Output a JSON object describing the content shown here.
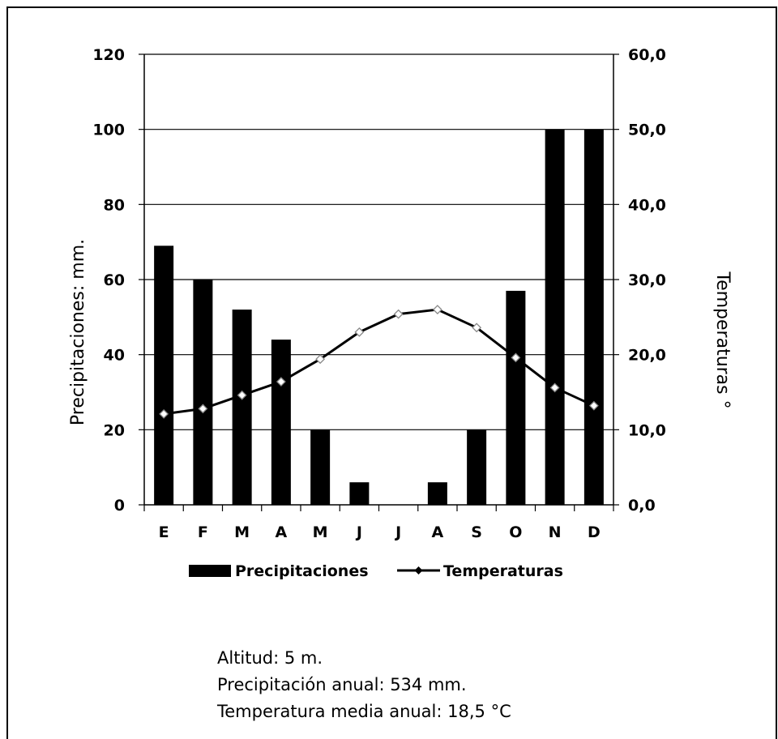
{
  "chart_data": {
    "type": "bar",
    "categories": [
      "E",
      "F",
      "M",
      "A",
      "M",
      "J",
      "J",
      "A",
      "S",
      "O",
      "N",
      "D"
    ],
    "series": [
      {
        "name": "Precipitaciones",
        "type": "bar",
        "axis": "left",
        "values": [
          69,
          60,
          52,
          44,
          20,
          6,
          0,
          6,
          20,
          57,
          100,
          100
        ]
      },
      {
        "name": "Temperaturas",
        "type": "line",
        "axis": "right",
        "values": [
          12.1,
          12.8,
          14.6,
          16.4,
          19.4,
          23.0,
          25.4,
          26.0,
          23.6,
          19.6,
          15.6,
          13.2
        ]
      }
    ],
    "ylabel": "Precipitaciones: mm.",
    "y2label": "Temperaturas °",
    "ylim": [
      0,
      120
    ],
    "y2lim": [
      0,
      60
    ],
    "yticks": [
      "0",
      "20",
      "40",
      "60",
      "80",
      "100",
      "120"
    ],
    "y2ticks": [
      "0,0",
      "10,0",
      "20,0",
      "30,0",
      "40,0",
      "50,0",
      "60,0"
    ],
    "grid": true,
    "legend_position": "bottom"
  },
  "notes": {
    "altitude": "Altitud: 5 m.",
    "annual_precip": "Precipitación anual: 534 mm.",
    "annual_temp": "Temperatura media anual: 18,5 °C"
  }
}
